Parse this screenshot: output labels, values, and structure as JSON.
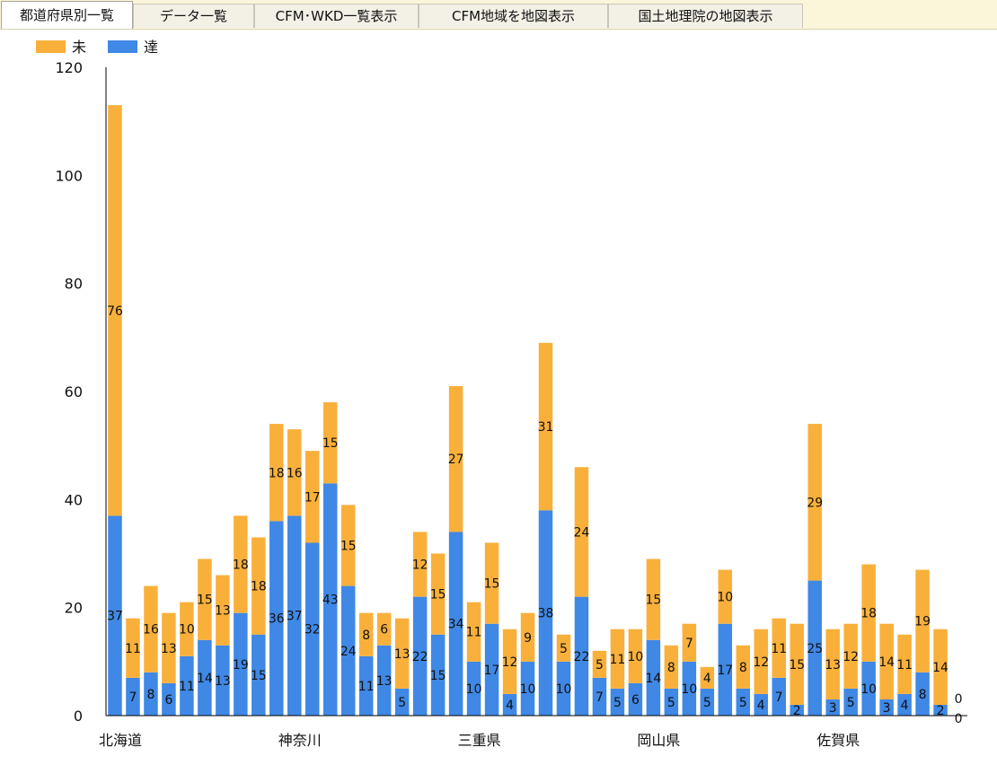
{
  "tabs": [
    {
      "label": "都道府県別一覧",
      "active": true
    },
    {
      "label": "データ一覧",
      "active": false
    },
    {
      "label": "CFM･WKD一覧表示",
      "active": false
    },
    {
      "label": "CFM地域を地図表示",
      "active": false
    },
    {
      "label": "国土地理院の地図表示",
      "active": false
    }
  ],
  "colors": {
    "series_mi": "#f9b03b",
    "series_tatsu": "#3f88e5"
  },
  "chart_data": {
    "type": "bar",
    "stacked": true,
    "legend_position": "top-left",
    "grid": false,
    "ylim": [
      0,
      120
    ],
    "y_ticks": [
      0,
      20,
      40,
      60,
      80,
      100,
      120
    ],
    "x_tick_labels": [
      {
        "index": 0,
        "label": "北海道"
      },
      {
        "index": 10,
        "label": "神奈川"
      },
      {
        "index": 20,
        "label": "三重県"
      },
      {
        "index": 30,
        "label": "岡山県"
      },
      {
        "index": 40,
        "label": "佐賀県"
      }
    ],
    "series": [
      {
        "name": "達",
        "values": [
          37,
          7,
          8,
          6,
          11,
          14,
          13,
          19,
          15,
          36,
          37,
          32,
          43,
          24,
          11,
          13,
          5,
          22,
          15,
          34,
          10,
          17,
          4,
          10,
          38,
          10,
          22,
          7,
          5,
          6,
          14,
          5,
          10,
          5,
          17,
          5,
          4,
          7,
          2,
          25,
          3,
          5,
          10,
          3,
          4,
          8,
          2,
          0
        ]
      },
      {
        "name": "未",
        "values": [
          76,
          11,
          16,
          13,
          10,
          15,
          13,
          18,
          18,
          18,
          16,
          17,
          15,
          15,
          8,
          6,
          13,
          12,
          15,
          27,
          11,
          15,
          12,
          9,
          31,
          5,
          24,
          5,
          11,
          10,
          15,
          8,
          7,
          4,
          10,
          8,
          12,
          11,
          15,
          29,
          13,
          12,
          18,
          14,
          11,
          19,
          14,
          0
        ]
      }
    ]
  }
}
